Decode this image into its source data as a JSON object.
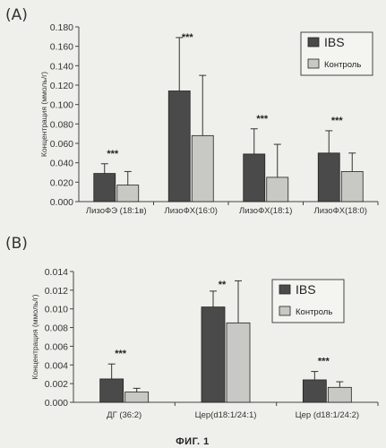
{
  "figure_caption": "ФИГ. 1",
  "colors": {
    "ibs": "#4a4a4a",
    "control": "#c8c8c4",
    "axis": "#444444"
  },
  "chart_data": [
    {
      "panel": "(A)",
      "type": "bar",
      "ylabel": "Концентрация (ммоль/г)",
      "ylim": [
        0,
        0.18
      ],
      "yticks": [
        "0.000",
        "0.020",
        "0.040",
        "0.060",
        "0.080",
        "0.100",
        "0.120",
        "0.140",
        "0.160",
        "0.180"
      ],
      "categories": [
        "ЛизоФЭ (18:1в)",
        "ЛизоФХ(16:0)",
        "ЛизоФХ(18:1)",
        "ЛизоФХ(18:0)"
      ],
      "significance": [
        "***",
        "***",
        "***",
        "***"
      ],
      "series": [
        {
          "name": "IBS",
          "values": [
            0.029,
            0.114,
            0.049,
            0.05
          ],
          "errors": [
            0.01,
            0.055,
            0.026,
            0.023
          ]
        },
        {
          "name": "Контроль",
          "values": [
            0.017,
            0.068,
            0.025,
            0.031
          ],
          "errors": [
            0.014,
            0.062,
            0.034,
            0.019
          ]
        }
      ],
      "legend_position": "top-right",
      "grid": false
    },
    {
      "panel": "(B)",
      "type": "bar",
      "ylabel": "Концентрация (ммоль/г)",
      "ylim": [
        0,
        0.014
      ],
      "yticks": [
        "0.000",
        "0.002",
        "0.004",
        "0.006",
        "0.008",
        "0.010",
        "0.012",
        "0.014"
      ],
      "categories": [
        "ДГ (36:2)",
        "Цер(d18:1/24:1)",
        "Цер (d18:1/24:2)"
      ],
      "significance": [
        "***",
        "**",
        "***"
      ],
      "series": [
        {
          "name": "IBS",
          "values": [
            0.0025,
            0.0102,
            0.0024
          ],
          "errors": [
            0.0016,
            0.0017,
            0.0009
          ]
        },
        {
          "name": "Контроль",
          "values": [
            0.0011,
            0.0085,
            0.0016
          ],
          "errors": [
            0.0004,
            0.0045,
            0.0006
          ]
        }
      ],
      "legend_position": "top-right",
      "grid": false
    }
  ]
}
